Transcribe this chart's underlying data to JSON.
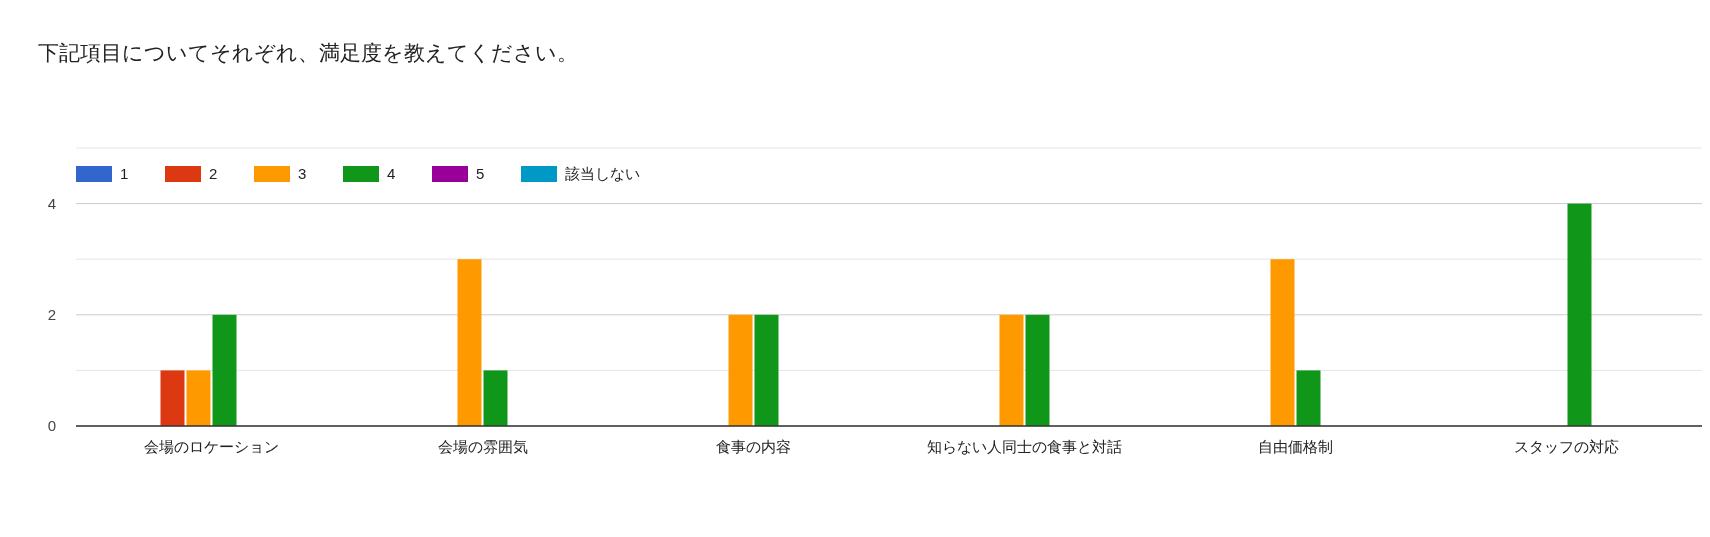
{
  "chart_data": {
    "type": "bar",
    "title": "下記項目についてそれぞれ、満足度を教えてください。",
    "categories": [
      "会場のロケーション",
      "会場の雰囲気",
      "食事の内容",
      "知らない人同士の食事と対話",
      "自由価格制",
      "スタッフの対応"
    ],
    "series": [
      {
        "name": "1",
        "color": "#3366cc",
        "values": [
          0,
          0,
          0,
          0,
          0,
          0
        ]
      },
      {
        "name": "2",
        "color": "#dc3912",
        "values": [
          1,
          0,
          0,
          0,
          0,
          0
        ]
      },
      {
        "name": "3",
        "color": "#ff9900",
        "values": [
          1,
          3,
          2,
          2,
          3,
          0
        ]
      },
      {
        "name": "4",
        "color": "#109618",
        "values": [
          2,
          1,
          2,
          2,
          1,
          4
        ]
      },
      {
        "name": "5",
        "color": "#990099",
        "values": [
          0,
          0,
          0,
          0,
          0,
          0
        ]
      },
      {
        "name": "該当しない",
        "color": "#0099c6",
        "values": [
          0,
          0,
          0,
          0,
          0,
          0
        ]
      }
    ],
    "ylim": [
      0,
      5
    ],
    "yticks": [
      0,
      {
        "value": 1,
        "label": null
      },
      2,
      {
        "value": 3,
        "label": null
      },
      4,
      {
        "value": 5,
        "label": null
      }
    ],
    "grid": "y",
    "legend": "top left"
  }
}
